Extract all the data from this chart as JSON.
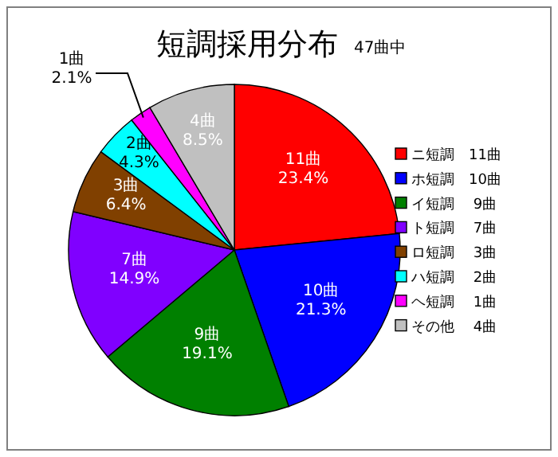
{
  "chart_data": {
    "type": "pie",
    "title": "短調採用分布",
    "subtitle": "47曲中",
    "categories": [
      "ニ短調　11曲",
      "ホ短調　10曲",
      "イ短調　 9曲",
      "ト短調　 7曲",
      "ロ短調　 3曲",
      "ハ短調　 2曲",
      "ヘ短調　 1曲",
      "その他　 4曲"
    ],
    "values": [
      11,
      10,
      9,
      7,
      3,
      2,
      1,
      4
    ],
    "colors": [
      "#ff0000",
      "#0000ff",
      "#008000",
      "#8000ff",
      "#804000",
      "#00ffff",
      "#ff00ff",
      "#c0c0c0"
    ],
    "value_labels": [
      "11曲\n23.4%",
      "10曲\n21.3%",
      "9曲\n19.1%",
      "7曲\n14.9%",
      "3曲\n6.4%",
      "2曲\n4.3%",
      "1曲\n2.1%",
      "4曲\n8.5%"
    ],
    "legend": "right"
  }
}
